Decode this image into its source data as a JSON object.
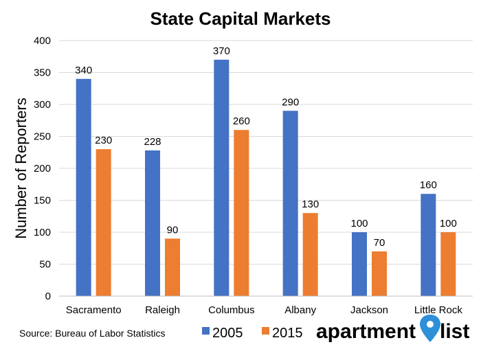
{
  "source_note": "Source: Bureau of Labor Statistics",
  "logo": {
    "word1": "apartment",
    "word2": "list",
    "pin_color": "#2f8fd8"
  },
  "chart_data": {
    "type": "bar",
    "title": "State Capital Markets",
    "xlabel": "",
    "ylabel": "Number of Reporters",
    "ylim": [
      0,
      400
    ],
    "yticks": [
      0,
      50,
      100,
      150,
      200,
      250,
      300,
      350,
      400
    ],
    "grid": true,
    "legend_position": "bottom",
    "categories": [
      "Sacramento",
      "Raleigh",
      "Columbus",
      "Albany",
      "Jackson",
      "Little Rock"
    ],
    "series": [
      {
        "name": "2005",
        "color": "#4472c4",
        "values": [
          340,
          228,
          370,
          290,
          100,
          160
        ]
      },
      {
        "name": "2015",
        "color": "#ed7d31",
        "values": [
          230,
          90,
          260,
          130,
          70,
          100
        ]
      }
    ]
  }
}
